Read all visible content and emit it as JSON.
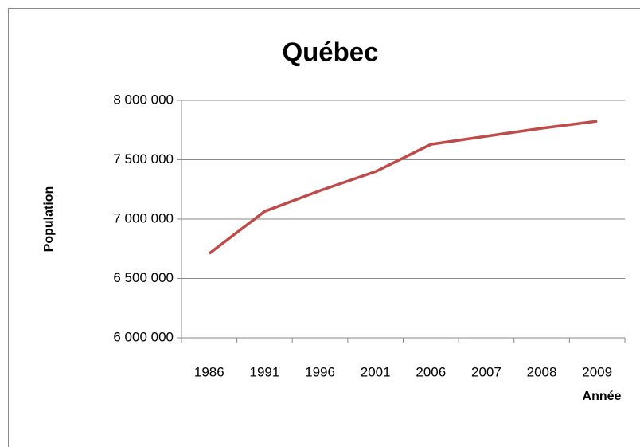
{
  "chart_data": {
    "type": "line",
    "title": "Québec",
    "y_label": "Population",
    "x_label": "Année",
    "categories": [
      "1986",
      "1991",
      "1996",
      "2001",
      "2006",
      "2007",
      "2008",
      "2009"
    ],
    "series": [
      {
        "name": "Population",
        "color": "#be4b48",
        "values": [
          6710000,
          7065000,
          7240000,
          7400000,
          7630000,
          7698000,
          7765000,
          7825000
        ]
      }
    ],
    "ylim": [
      6000000,
      8000000
    ],
    "yticks": [
      {
        "value": 6000000,
        "label": "6 000 000"
      },
      {
        "value": 6500000,
        "label": "6 500 000"
      },
      {
        "value": 7000000,
        "label": "7 000 000"
      },
      {
        "value": 7500000,
        "label": "7 500 000"
      },
      {
        "value": 8000000,
        "label": "8 000 000"
      }
    ],
    "grid": true
  }
}
